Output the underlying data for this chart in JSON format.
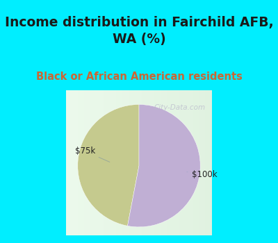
{
  "title": "Income distribution in Fairchild AFB,\nWA (%)",
  "subtitle": "Black or African American residents",
  "slices": [
    47,
    53
  ],
  "labels": [
    "$75k",
    "$100k"
  ],
  "colors": [
    "#c5ca8e",
    "#c0afd4"
  ],
  "title_color": "#1a1a1a",
  "subtitle_color": "#cc6633",
  "label_color": "#222222",
  "bg_cyan": "#00eeff",
  "bg_chart": "#f0f8f0",
  "watermark": "City-Data.com",
  "title_fontsize": 13.5,
  "subtitle_fontsize": 10.5,
  "label_fontsize": 8.5
}
